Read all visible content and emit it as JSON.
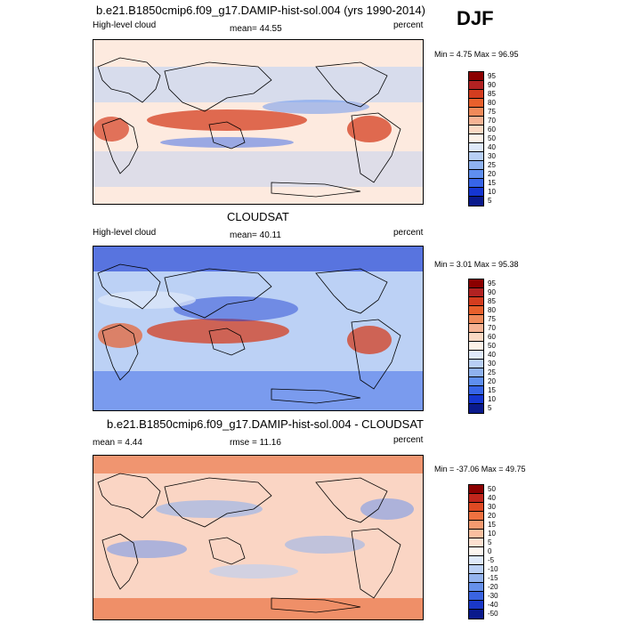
{
  "season": "DJF",
  "panels": [
    {
      "title": "b.e21.B1850cmip6.f09_g17.DAMIP-hist-sol.004 (yrs 1990-2014)",
      "left_label": "High-level cloud",
      "center_label": "mean=  44.55",
      "right_label": "percent",
      "minmax": "Min =  4.75 Max =  96.95",
      "type": "abs",
      "colorbar_labels": [
        "95",
        "90",
        "85",
        "80",
        "75",
        "70",
        "60",
        "50",
        "40",
        "30",
        "25",
        "20",
        "15",
        "10",
        "5"
      ]
    },
    {
      "title": "CLOUDSAT",
      "left_label": "High-level cloud",
      "center_label": "mean=  40.11",
      "right_label": "percent",
      "minmax": "Min =  3.01 Max =  95.38",
      "type": "obs",
      "colorbar_labels": [
        "95",
        "90",
        "85",
        "80",
        "75",
        "70",
        "60",
        "50",
        "40",
        "30",
        "25",
        "20",
        "15",
        "10",
        "5"
      ]
    },
    {
      "title": "b.e21.B1850cmip6.f09_g17.DAMIP-hist-sol.004 - CLOUDSAT",
      "left_label": "mean =  4.44",
      "center_label": "rmse =  11.16",
      "right_label": "percent",
      "minmax": "Min = -37.06 Max =  49.75",
      "type": "diff",
      "colorbar_labels": [
        "50",
        "40",
        "30",
        "20",
        "15",
        "10",
        "5",
        "0",
        "-5",
        "-10",
        "-15",
        "-20",
        "-30",
        "-40",
        "-50"
      ]
    }
  ],
  "colors": {
    "abs_scale": [
      "#8b0000",
      "#b22222",
      "#d43d1f",
      "#e8602c",
      "#f08a5a",
      "#f6b394",
      "#fbd9c4",
      "#fdf2e8",
      "#dfe9fa",
      "#b8cff5",
      "#8fb2ef",
      "#5f8ff0",
      "#3765e8",
      "#1536d1",
      "#0a1a8c"
    ],
    "diff_scale": [
      "#8b0000",
      "#c0261c",
      "#df4a23",
      "#ef7140",
      "#f59a70",
      "#f9bf9f",
      "#fde0d0",
      "#fdf6f0",
      "#dfe9fa",
      "#bcd1f6",
      "#94b4ef",
      "#6690ea",
      "#3a64e1",
      "#1a38c8",
      "#0a1a8c"
    ]
  }
}
